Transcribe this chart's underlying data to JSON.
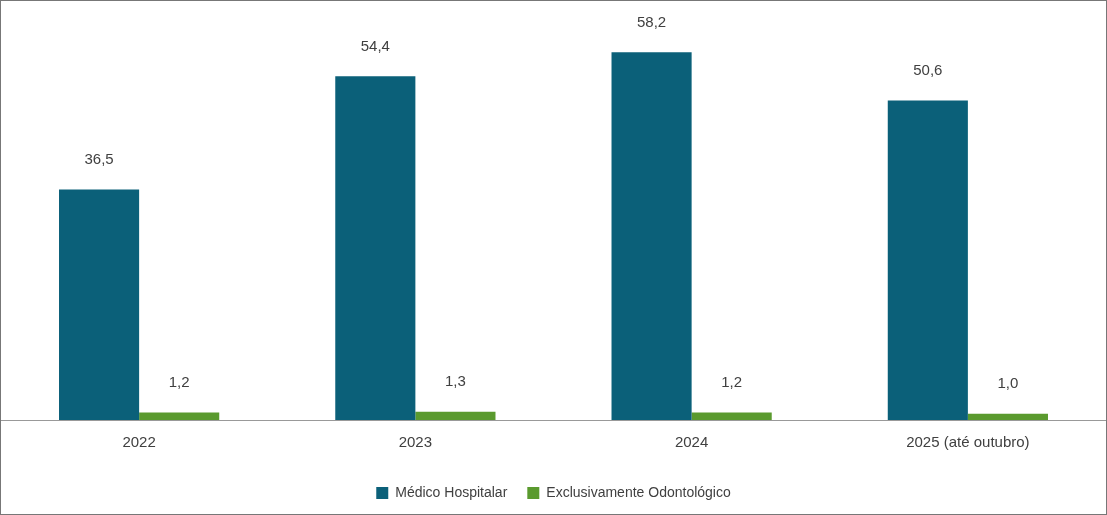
{
  "chart_data": {
    "type": "bar",
    "categories": [
      "2022",
      "2023",
      "2024",
      "2025 (até outubro)"
    ],
    "legend": "bottom",
    "series": [
      {
        "name": "Médico Hospitalar",
        "color": "#0b6079",
        "values": [
          36.5,
          54.4,
          58.2,
          50.6
        ],
        "value_labels": [
          "36,5",
          "54,4",
          "58,2",
          "50,6"
        ]
      },
      {
        "name": "Exclusivamente Odontológico",
        "color": "#5a9a2e",
        "values": [
          1.2,
          1.3,
          1.2,
          1.0
        ],
        "value_labels": [
          "1,2",
          "1,3",
          "1,2",
          "1,0"
        ]
      }
    ]
  }
}
